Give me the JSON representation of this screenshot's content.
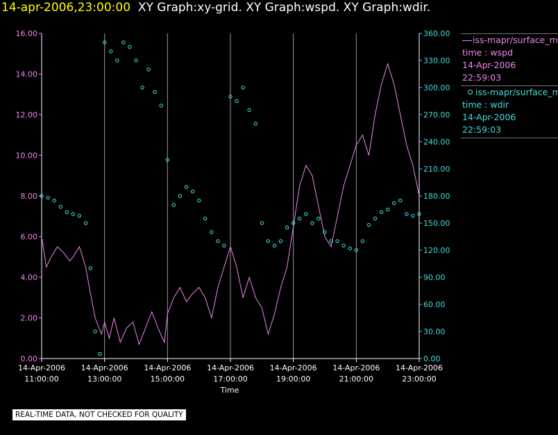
{
  "header": {
    "timestamp": "14-apr-2006,23:00:00",
    "graphs": "XY Graph:xy-grid.  XY Graph:wspd.  XY Graph:wdir."
  },
  "legend": {
    "wspd": {
      "name": "iss-mapr/surface_m",
      "var": "time : wspd",
      "date": "14-Apr-2006",
      "time": "22:59:03"
    },
    "wdir": {
      "name": "iss-mapr/surface_m",
      "var": "time : wdir",
      "date": "14-Apr-2006",
      "time": "22:59:03"
    }
  },
  "notice": "REAL-TIME DATA, NOT CHECKED FOR QUALITY",
  "colors": {
    "wspd": "#ee88ee",
    "wdir": "#44eeee",
    "axis": "#ffffff",
    "left_ticks": "#ee88ee",
    "right_ticks": "#44dddd",
    "grid": "#999999"
  },
  "chart_data": {
    "type": "scatter",
    "xlabel": "Time",
    "x_ticks": [
      {
        "date": "14-Apr-2006",
        "time": "11:00:00",
        "hour": 11
      },
      {
        "date": "14-Apr-2006",
        "time": "13:00:00",
        "hour": 13
      },
      {
        "date": "14-Apr-2006",
        "time": "15:00:00",
        "hour": 15
      },
      {
        "date": "14-Apr-2006",
        "time": "17:00:00",
        "hour": 17
      },
      {
        "date": "14-Apr-2006",
        "time": "19:00:00",
        "hour": 19
      },
      {
        "date": "14-Apr-2006",
        "time": "21:00:00",
        "hour": 21
      },
      {
        "date": "14-Apr-2006",
        "time": "23:00:00",
        "hour": 23
      }
    ],
    "xlim": [
      11.0,
      23.0
    ],
    "y_left": {
      "lim": [
        0,
        16
      ],
      "ticks": [
        "0.00",
        "2.00",
        "4.00",
        "6.00",
        "8.00",
        "10.00",
        "12.00",
        "14.00",
        "16.00"
      ]
    },
    "y_right": {
      "lim": [
        0,
        360
      ],
      "ticks": [
        "0.00",
        "30.00",
        "60.00",
        "90.00",
        "120.00",
        "150.00",
        "180.00",
        "210.00",
        "240.00",
        "270.00",
        "300.00",
        "330.00",
        "360.00"
      ]
    },
    "vertical_grid": true,
    "legend_position": "right",
    "series": [
      {
        "key": "wspd",
        "style": "line",
        "axis": "left",
        "points": [
          [
            11.0,
            6.0
          ],
          [
            11.15,
            4.5
          ],
          [
            11.3,
            5.0
          ],
          [
            11.5,
            5.5
          ],
          [
            11.7,
            5.2
          ],
          [
            11.9,
            4.8
          ],
          [
            12.0,
            5.0
          ],
          [
            12.2,
            5.5
          ],
          [
            12.4,
            4.5
          ],
          [
            12.55,
            3.2
          ],
          [
            12.7,
            2.0
          ],
          [
            12.9,
            1.2
          ],
          [
            13.0,
            1.8
          ],
          [
            13.15,
            1.0
          ],
          [
            13.3,
            2.0
          ],
          [
            13.5,
            0.8
          ],
          [
            13.7,
            1.5
          ],
          [
            13.9,
            1.8
          ],
          [
            14.1,
            0.7
          ],
          [
            14.3,
            1.5
          ],
          [
            14.5,
            2.3
          ],
          [
            14.7,
            1.5
          ],
          [
            14.9,
            0.8
          ],
          [
            15.0,
            2.2
          ],
          [
            15.2,
            3.0
          ],
          [
            15.4,
            3.5
          ],
          [
            15.6,
            2.8
          ],
          [
            15.8,
            3.2
          ],
          [
            16.0,
            3.5
          ],
          [
            16.2,
            3.0
          ],
          [
            16.4,
            2.0
          ],
          [
            16.6,
            3.5
          ],
          [
            16.8,
            4.5
          ],
          [
            17.0,
            5.5
          ],
          [
            17.2,
            4.5
          ],
          [
            17.4,
            3.0
          ],
          [
            17.6,
            4.0
          ],
          [
            17.8,
            3.0
          ],
          [
            18.0,
            2.5
          ],
          [
            18.2,
            1.2
          ],
          [
            18.4,
            2.2
          ],
          [
            18.6,
            3.5
          ],
          [
            18.8,
            4.5
          ],
          [
            19.0,
            6.5
          ],
          [
            19.2,
            8.5
          ],
          [
            19.4,
            9.5
          ],
          [
            19.6,
            9.0
          ],
          [
            19.8,
            7.5
          ],
          [
            20.0,
            6.0
          ],
          [
            20.2,
            5.5
          ],
          [
            20.4,
            7.0
          ],
          [
            20.6,
            8.5
          ],
          [
            20.8,
            9.5
          ],
          [
            21.0,
            10.5
          ],
          [
            21.2,
            11.0
          ],
          [
            21.4,
            10.0
          ],
          [
            21.6,
            12.0
          ],
          [
            21.8,
            13.5
          ],
          [
            22.0,
            14.5
          ],
          [
            22.2,
            13.5
          ],
          [
            22.4,
            12.0
          ],
          [
            22.6,
            10.5
          ],
          [
            22.8,
            9.5
          ],
          [
            23.0,
            8.0
          ]
        ]
      },
      {
        "key": "wdir",
        "style": "points",
        "axis": "right",
        "points": [
          [
            11.0,
            180
          ],
          [
            11.2,
            178
          ],
          [
            11.4,
            175
          ],
          [
            11.6,
            168
          ],
          [
            11.8,
            162
          ],
          [
            12.0,
            160
          ],
          [
            12.2,
            158
          ],
          [
            12.4,
            150
          ],
          [
            12.55,
            100
          ],
          [
            12.7,
            30
          ],
          [
            12.85,
            5
          ],
          [
            13.0,
            350
          ],
          [
            13.2,
            340
          ],
          [
            13.4,
            330
          ],
          [
            13.6,
            350
          ],
          [
            13.8,
            345
          ],
          [
            14.0,
            330
          ],
          [
            14.2,
            300
          ],
          [
            14.4,
            320
          ],
          [
            14.6,
            295
          ],
          [
            14.8,
            280
          ],
          [
            15.0,
            220
          ],
          [
            15.2,
            170
          ],
          [
            15.4,
            180
          ],
          [
            15.6,
            190
          ],
          [
            15.8,
            185
          ],
          [
            16.0,
            175
          ],
          [
            16.2,
            155
          ],
          [
            16.4,
            140
          ],
          [
            16.6,
            130
          ],
          [
            16.8,
            125
          ],
          [
            17.0,
            290
          ],
          [
            17.2,
            285
          ],
          [
            17.4,
            300
          ],
          [
            17.6,
            275
          ],
          [
            17.8,
            260
          ],
          [
            18.0,
            150
          ],
          [
            18.2,
            130
          ],
          [
            18.4,
            125
          ],
          [
            18.6,
            130
          ],
          [
            18.8,
            145
          ],
          [
            19.0,
            150
          ],
          [
            19.2,
            155
          ],
          [
            19.4,
            160
          ],
          [
            19.6,
            150
          ],
          [
            19.8,
            155
          ],
          [
            20.0,
            140
          ],
          [
            20.2,
            130
          ],
          [
            20.4,
            130
          ],
          [
            20.6,
            125
          ],
          [
            20.8,
            122
          ],
          [
            21.0,
            120
          ],
          [
            21.2,
            130
          ],
          [
            21.4,
            148
          ],
          [
            21.6,
            155
          ],
          [
            21.8,
            162
          ],
          [
            22.0,
            165
          ],
          [
            22.2,
            172
          ],
          [
            22.4,
            175
          ],
          [
            22.6,
            160
          ],
          [
            22.8,
            158
          ],
          [
            23.0,
            160
          ]
        ]
      }
    ]
  }
}
